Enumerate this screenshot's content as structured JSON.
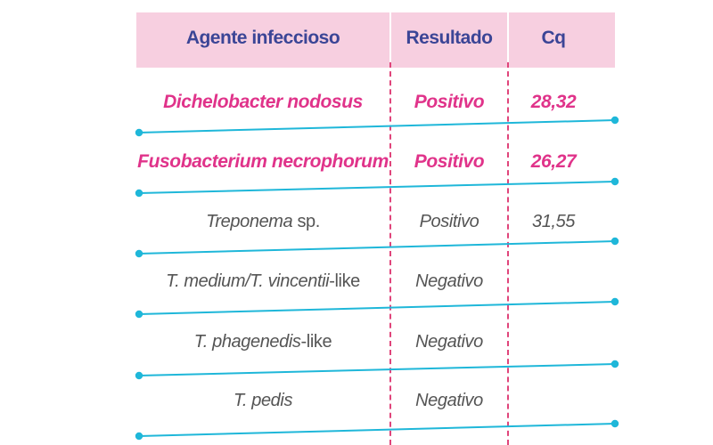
{
  "table": {
    "headers": {
      "agent": "Agente infeccioso",
      "result": "Resultado",
      "cq": "Cq"
    },
    "rows": [
      {
        "agent": "Dichelobacter nodosus",
        "agent_suffix": "",
        "result": "Positivo",
        "cq": "28,32",
        "highlight": true
      },
      {
        "agent": "Fusobacterium necrophorum",
        "agent_suffix": "",
        "result": "Positivo",
        "cq": "26,27",
        "highlight": true
      },
      {
        "agent": "Treponema",
        "agent_suffix": " sp.",
        "result": "Positivo",
        "cq": "31,55",
        "highlight": false
      },
      {
        "agent": "T. medium/T. vincentii",
        "agent_suffix": "-like",
        "result": "Negativo",
        "cq": "",
        "highlight": false
      },
      {
        "agent": "T. phagenedis",
        "agent_suffix": "-like",
        "result": "Negativo",
        "cq": "",
        "highlight": false
      },
      {
        "agent": "T. pedis",
        "agent_suffix": "",
        "result": "Negativo",
        "cq": "",
        "highlight": false
      }
    ]
  },
  "colors": {
    "header_bg": "#f7cfe0",
    "header_text": "#3b4596",
    "highlight_text": "#e0338a",
    "normal_text": "#555555",
    "row_line": "#1fb7d9",
    "column_dash": "#e0457b"
  }
}
